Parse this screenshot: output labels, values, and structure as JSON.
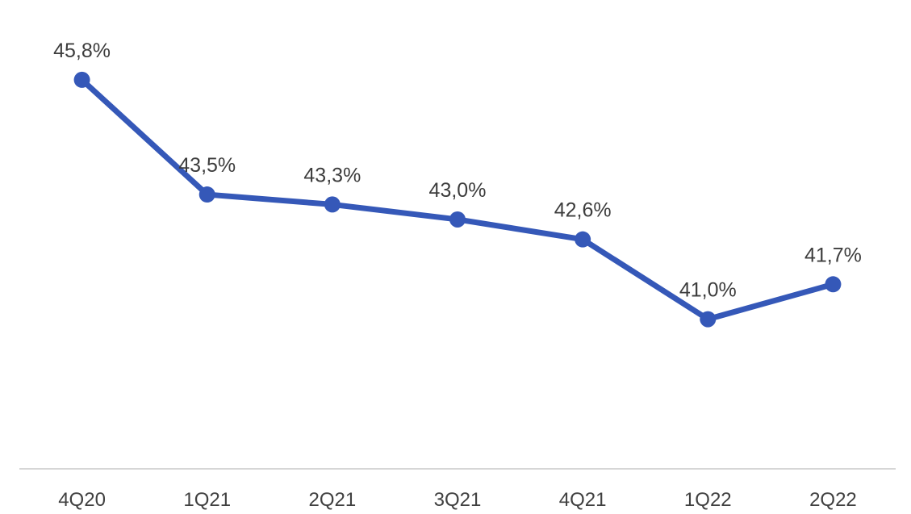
{
  "chart_data": {
    "type": "line",
    "title": "",
    "xlabel": "",
    "ylabel": "",
    "categories": [
      "4Q20",
      "1Q21",
      "2Q21",
      "3Q21",
      "4Q21",
      "1Q22",
      "2Q22"
    ],
    "series": [
      {
        "name": "quarterly-percentage",
        "values": [
          45.8,
          43.5,
          43.3,
          43.0,
          42.6,
          41.0,
          41.7
        ],
        "data_labels": [
          "45,8%",
          "43,5%",
          "43,3%",
          "43,0%",
          "42,6%",
          "41,0%",
          "41,7%"
        ]
      }
    ],
    "ylim": [
      38,
      47.4
    ],
    "grid": false,
    "legend": false,
    "colors": {
      "line": "#3558b8",
      "marker": "#3558b8",
      "data_label_text": "#3d3d3d",
      "axis_label_text": "#404040",
      "axis_line": "#d6d6d6",
      "background": "#ffffff"
    }
  }
}
